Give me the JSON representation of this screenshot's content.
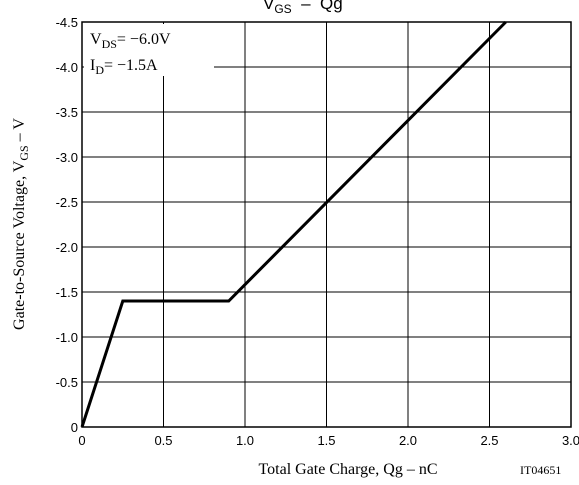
{
  "chart_data": {
    "type": "line",
    "title_main": "V",
    "title_sub": "GS",
    "title_rest": "  –  Qg",
    "xlabel": "Total Gate Charge, Qg  –  nC",
    "ylabel_main": "Gate-to-Source Voltage, V",
    "ylabel_sub": "GS",
    "ylabel_rest": " – V",
    "xlim": [
      0,
      3.0
    ],
    "ylim": [
      0,
      -4.5
    ],
    "xticks": [
      "0",
      "0.5",
      "1.0",
      "1.5",
      "2.0",
      "2.5",
      "3.0"
    ],
    "yticks": [
      "0",
      "-0.5",
      "-1.0",
      "-1.5",
      "-2.0",
      "-2.5",
      "-3.0",
      "-3.5",
      "-4.0",
      "-4.5"
    ],
    "grid": true,
    "conditions": [
      {
        "main": "V",
        "sub": "DS",
        "rest": "= −6.0V"
      },
      {
        "main": "I",
        "sub": "D",
        "rest": "= −1.5A"
      }
    ],
    "figure_id": "IT04651",
    "series": [
      {
        "x": [
          0,
          0.25,
          0.9,
          2.6
        ],
        "y": [
          0,
          -1.4,
          -1.4,
          -4.5
        ]
      }
    ]
  }
}
